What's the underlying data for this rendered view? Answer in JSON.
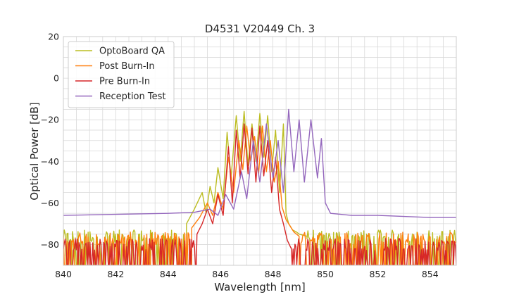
{
  "chart_data": {
    "type": "line",
    "title": "D4531 V20449 Ch. 3",
    "xlabel": "Wavelength [nm]",
    "ylabel": "Optical Power [dB]",
    "xlim": [
      840,
      855
    ],
    "ylim": [
      -90,
      20
    ],
    "xticks": [
      840,
      842,
      844,
      846,
      848,
      850,
      852,
      854
    ],
    "xtick_labels": [
      "840",
      "842",
      "844",
      "846",
      "848",
      "850",
      "852",
      "854"
    ],
    "yticks": [
      20,
      0,
      -20,
      -40,
      -60,
      -80
    ],
    "ytick_labels": [
      "20",
      "0",
      "−20",
      "−40",
      "−60",
      "−80"
    ],
    "grid": true,
    "grid_minor_step": [
      0.5,
      5
    ],
    "legend_position": "upper-left",
    "series": [
      {
        "name": "OptoBoard QA",
        "color": "#bcbd22",
        "noise_floor": {
          "x_range": [
            840,
            844.7
          ],
          "baseline": -76,
          "min": -90
        },
        "x": [
          844.7,
          845.0,
          845.3,
          845.45,
          845.6,
          845.75,
          845.9,
          846.1,
          846.25,
          846.4,
          846.6,
          846.75,
          846.9,
          847.05,
          847.2,
          847.35,
          847.5,
          847.65,
          847.8,
          847.95,
          848.1,
          848.25,
          848.4,
          848.5,
          848.6,
          848.75,
          848.9,
          849.0,
          849.3
        ],
        "y": [
          -70,
          -63,
          -55,
          -65,
          -52,
          -60,
          -43,
          -58,
          -26,
          -48,
          -18,
          -40,
          -16,
          -42,
          -22,
          -40,
          -17,
          -38,
          -18,
          -45,
          -25,
          -55,
          -22,
          -65,
          -70,
          -73,
          -74,
          -75,
          -76
        ],
        "noise_floor_right": {
          "x_range": [
            849.3,
            855
          ],
          "baseline": -76,
          "min": -90
        }
      },
      {
        "name": "Post Burn-In",
        "color": "#ff7f0e",
        "noise_floor": {
          "x_range": [
            840,
            844.9
          ],
          "baseline": -77,
          "min": -90
        },
        "x": [
          844.9,
          845.2,
          845.5,
          845.7,
          845.9,
          846.1,
          846.3,
          846.5,
          846.7,
          846.85,
          847.0,
          847.15,
          847.3,
          847.45,
          847.6,
          847.75,
          847.9,
          848.05,
          848.2,
          848.35,
          848.5,
          848.65,
          848.8,
          849.0
        ],
        "y": [
          -72,
          -67,
          -60,
          -66,
          -55,
          -63,
          -38,
          -55,
          -30,
          -44,
          -23,
          -40,
          -28,
          -46,
          -23,
          -45,
          -30,
          -50,
          -40,
          -62,
          -68,
          -71,
          -74,
          -76
        ],
        "noise_floor_right": {
          "x_range": [
            849.0,
            855
          ],
          "baseline": -77,
          "min": -90
        }
      },
      {
        "name": "Pre Burn-In",
        "color": "#d62728",
        "noise_floor": {
          "x_range": [
            840,
            845.1
          ],
          "baseline": -80,
          "min": -90
        },
        "x": [
          845.1,
          845.3,
          845.5,
          845.7,
          845.9,
          846.1,
          846.3,
          846.45,
          846.6,
          846.75,
          846.9,
          847.05,
          847.2,
          847.35,
          847.5,
          847.65,
          847.8,
          847.95,
          848.1,
          848.25,
          848.4,
          848.55,
          848.7
        ],
        "y": [
          -75,
          -70,
          -63,
          -70,
          -56,
          -66,
          -33,
          -60,
          -25,
          -48,
          -22,
          -46,
          -24,
          -50,
          -23,
          -47,
          -30,
          -55,
          -38,
          -63,
          -70,
          -78,
          -82
        ],
        "noise_floor_right": {
          "x_range": [
            848.7,
            855
          ],
          "baseline": -80,
          "min": -90
        }
      },
      {
        "name": "Reception Test",
        "color": "#9467bd",
        "x": [
          840,
          842,
          844,
          845,
          845.6,
          845.9,
          846.2,
          846.5,
          846.8,
          847.0,
          847.25,
          847.5,
          847.75,
          848.0,
          848.2,
          848.4,
          848.6,
          848.8,
          849.0,
          849.2,
          849.45,
          849.7,
          849.85,
          850.0,
          850.2,
          851,
          852,
          853,
          854,
          855
        ],
        "y": [
          -66,
          -65.5,
          -65,
          -64.5,
          -63,
          -66,
          -56,
          -63,
          -45,
          -58,
          -30,
          -50,
          -22,
          -48,
          -30,
          -55,
          -15,
          -45,
          -20,
          -50,
          -20,
          -48,
          -29,
          -60,
          -65,
          -66,
          -66,
          -66.5,
          -67,
          -67
        ]
      }
    ]
  }
}
